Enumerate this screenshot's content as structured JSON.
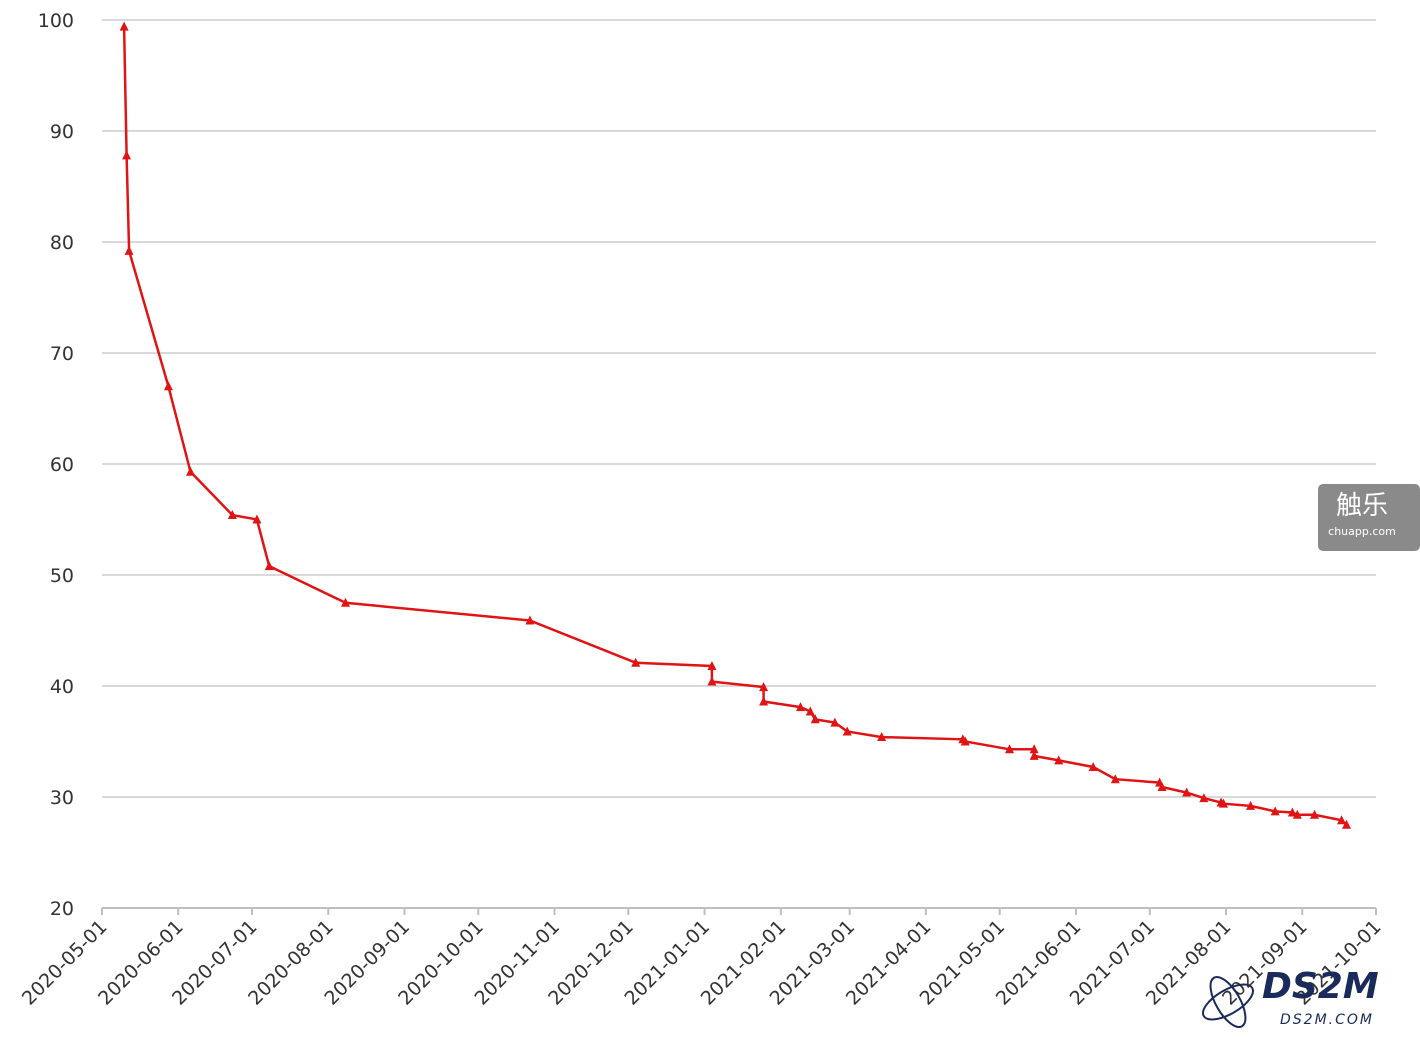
{
  "chart_data": {
    "type": "line",
    "grid": true,
    "marker": "triangle",
    "x": [
      "2020-05-10",
      "2020-05-11",
      "2020-05-12",
      "2020-05-28",
      "2020-06-06",
      "2020-06-23",
      "2020-07-03",
      "2020-07-08",
      "2020-08-08",
      "2020-10-22",
      "2020-12-04",
      "2021-01-04",
      "2021-01-04",
      "2021-01-25",
      "2021-01-25",
      "2021-02-09",
      "2021-02-13",
      "2021-02-15",
      "2021-02-23",
      "2021-02-28",
      "2021-03-14",
      "2021-04-16",
      "2021-04-17",
      "2021-05-05",
      "2021-05-15",
      "2021-05-15",
      "2021-05-25",
      "2021-06-08",
      "2021-06-17",
      "2021-07-05",
      "2021-07-06",
      "2021-07-16",
      "2021-07-23",
      "2021-07-30",
      "2021-07-31",
      "2021-08-11",
      "2021-08-21",
      "2021-08-28",
      "2021-08-30",
      "2021-09-06",
      "2021-09-17",
      "2021-09-19"
    ],
    "series": [
      {
        "color": "#e01414",
        "values": [
          99.4,
          87.8,
          79.2,
          67.0,
          59.3,
          55.4,
          55.0,
          50.8,
          47.5,
          45.9,
          42.1,
          41.8,
          40.4,
          39.9,
          38.6,
          38.1,
          37.7,
          37.0,
          36.7,
          35.9,
          35.4,
          35.2,
          35.0,
          34.3,
          34.3,
          33.7,
          33.3,
          32.7,
          31.6,
          31.3,
          30.9,
          30.4,
          29.9,
          29.5,
          29.4,
          29.2,
          28.7,
          28.6,
          28.4,
          28.4,
          27.9,
          27.5
        ]
      }
    ],
    "xlim": [
      "2020-05-01",
      "2021-10-01"
    ],
    "xticks": [
      "2020-05-01",
      "2020-06-01",
      "2020-07-01",
      "2020-08-01",
      "2020-09-01",
      "2020-10-01",
      "2020-11-01",
      "2020-12-01",
      "2021-01-01",
      "2021-02-01",
      "2021-03-01",
      "2021-04-01",
      "2021-05-01",
      "2021-06-01",
      "2021-07-01",
      "2021-08-01",
      "2021-09-01",
      "2021-10-01"
    ],
    "ylim": [
      20,
      100
    ],
    "yticks": [
      20,
      30,
      40,
      50,
      60,
      70,
      80,
      90,
      100
    ]
  },
  "watermarks": [
    "触乐",
    "chuapp.com",
    "DS2M",
    "DS2M.COM"
  ]
}
